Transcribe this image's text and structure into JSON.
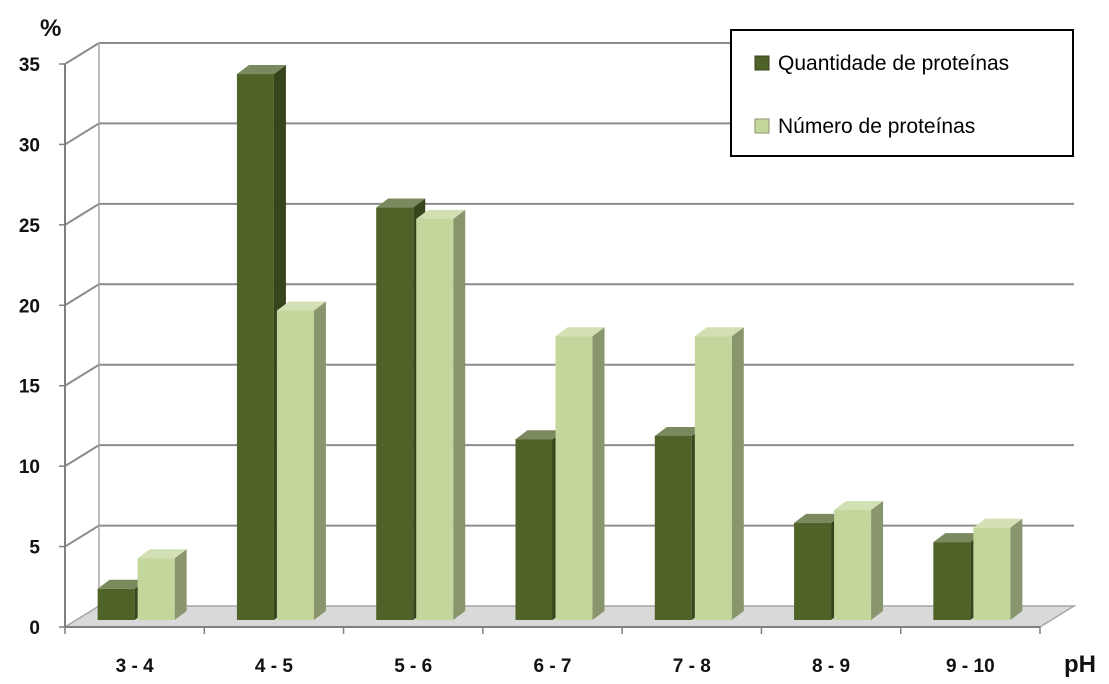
{
  "chart_data": {
    "type": "bar",
    "ylabel": "%",
    "xlabel": "pH",
    "categories": [
      "3 - 4",
      "4 - 5",
      "5 - 6",
      "6 - 7",
      "7 - 8",
      "8 - 9",
      "9 - 10"
    ],
    "series": [
      {
        "name": "Quantidade de proteínas",
        "values": [
          2.5,
          34.5,
          26.2,
          11.8,
          12.0,
          6.6,
          5.4
        ],
        "color": "#4f6228"
      },
      {
        "name": "Número de proteínas",
        "values": [
          4.4,
          19.8,
          25.5,
          18.2,
          18.2,
          7.4,
          6.3
        ],
        "color": "#c3d69b"
      }
    ],
    "yticks": [
      "0",
      "5",
      "10",
      "15",
      "20",
      "25",
      "30",
      "35"
    ],
    "ylim": [
      0,
      35
    ],
    "grid": true,
    "legend_position": "top-right"
  }
}
